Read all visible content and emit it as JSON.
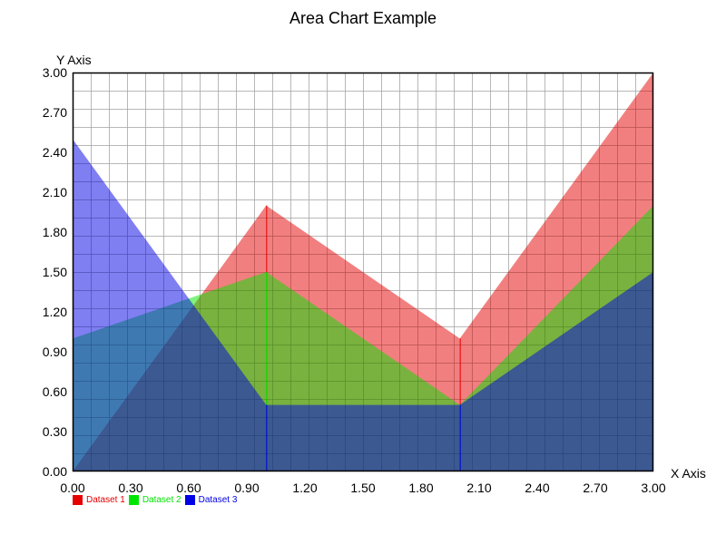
{
  "chart_data": {
    "type": "area",
    "title": "Area Chart Example",
    "xlabel": "X Axis",
    "ylabel": "Y Axis",
    "x": [
      0,
      1,
      2,
      3
    ],
    "series": [
      {
        "name": "Dataset 1",
        "color": "#e60000",
        "values": [
          0.0,
          2.0,
          1.0,
          3.0
        ]
      },
      {
        "name": "Dataset 2",
        "color": "#00e600",
        "values": [
          1.0,
          1.5,
          0.5,
          2.0
        ]
      },
      {
        "name": "Dataset 3",
        "color": "#0000e6",
        "values": [
          2.5,
          0.5,
          0.5,
          1.5
        ]
      }
    ],
    "xlim": [
      0,
      3
    ],
    "ylim": [
      0,
      3
    ],
    "xticks": [
      "0.00",
      "0.30",
      "0.60",
      "0.90",
      "1.20",
      "1.50",
      "1.80",
      "2.10",
      "2.40",
      "2.70",
      "3.00"
    ],
    "yticks": [
      "0.00",
      "0.30",
      "0.60",
      "0.90",
      "1.20",
      "1.50",
      "1.80",
      "2.10",
      "2.40",
      "2.70",
      "3.00"
    ],
    "grid": true,
    "legend_position": "bottom-left"
  },
  "legend": [
    {
      "label": "Dataset 1",
      "color": "#e60000",
      "text_color": "#e60000"
    },
    {
      "label": "Dataset 2",
      "color": "#00e600",
      "text_color": "#00e600"
    },
    {
      "label": "Dataset 3",
      "color": "#0000e6",
      "text_color": "#0000e6"
    }
  ]
}
